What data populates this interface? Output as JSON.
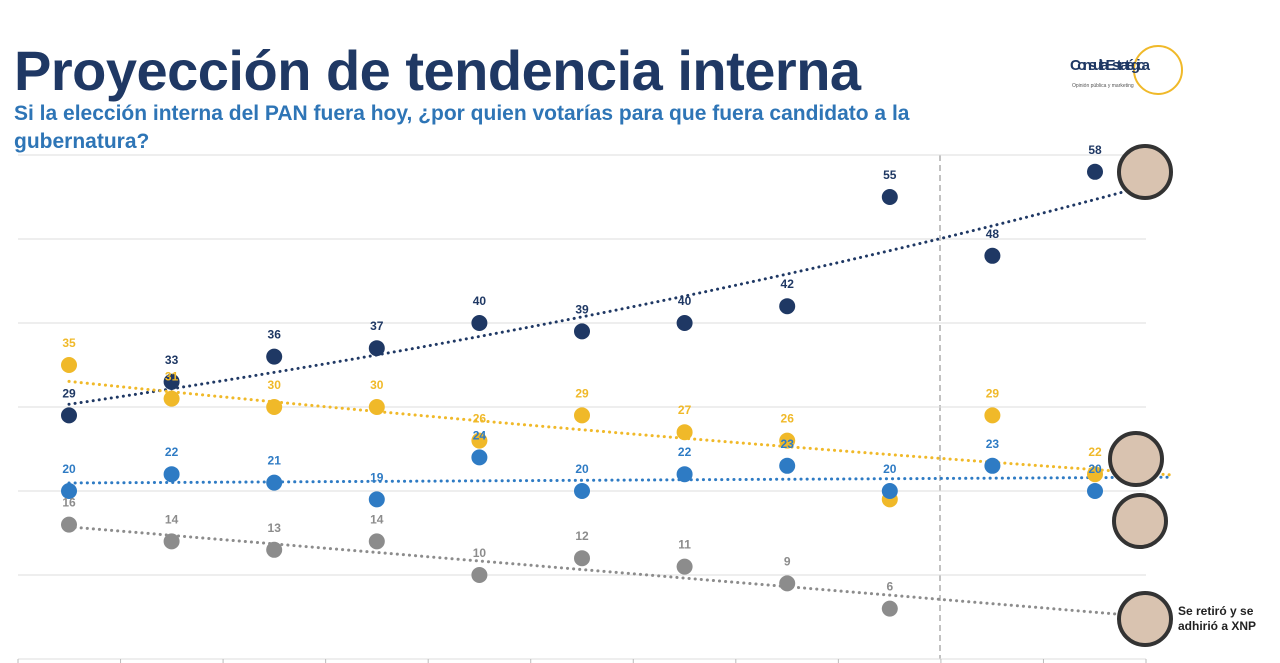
{
  "chart_data": {
    "type": "line",
    "title": "Proyección de tendencia interna",
    "subtitle": "Si la elección interna del PAN fuera hoy, ¿por quien votarías para que fuera candidato a la gubernatura?",
    "logo": {
      "name": "Consulta Estratégica",
      "tagline": "Opinión pública y marketing"
    },
    "annotation": "Se retiró y se adhirió a XNP",
    "ylim": [
      0,
      60
    ],
    "yticks": [
      0,
      10,
      20,
      30,
      40,
      50,
      60
    ],
    "grid": true,
    "series": [
      {
        "color": "#1f3864",
        "trendline": "exponential",
        "values": [
          29,
          33,
          36,
          37,
          40,
          39,
          40,
          42,
          55,
          48,
          58
        ]
      },
      {
        "color": "#f0b929",
        "trendline": "exponential",
        "values": [
          35,
          31,
          30,
          30,
          26,
          29,
          27,
          26,
          19,
          29,
          22
        ],
        "value_labels": [
          "35",
          "31",
          "30",
          "30",
          "26",
          "29",
          "27",
          "26",
          null,
          "29",
          "22"
        ]
      },
      {
        "color": "#2e7bc4",
        "trendline": "linear",
        "values": [
          20,
          22,
          21,
          19,
          24,
          20,
          22,
          23,
          20,
          23,
          20
        ]
      },
      {
        "color": "#8c8c8c",
        "trendline": "linear",
        "values": [
          16,
          14,
          13,
          14,
          10,
          12,
          11,
          9,
          6,
          null,
          null
        ]
      }
    ]
  }
}
